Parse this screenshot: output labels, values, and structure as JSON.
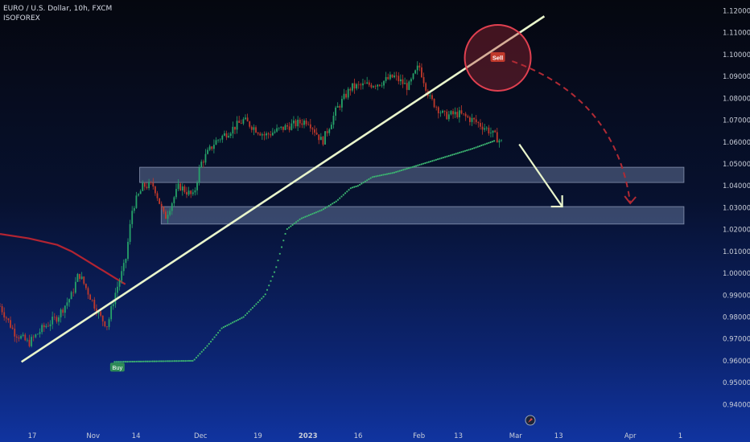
{
  "header": {
    "title": "EURO / U.S. Dollar, 10h, FXCM",
    "subtitle": "ISOFOREX"
  },
  "colors": {
    "up": "#26a269",
    "down": "#c0392b",
    "trend": "#e9f5cc",
    "zone_fill": "#8a9ec6",
    "dots": "#3cb371",
    "ma": "#b22432",
    "sell": "#c0392b",
    "buy": "#2e8b57"
  },
  "chart_data": {
    "type": "candlestick",
    "instrument": "EURO / U.S. Dollar",
    "timeframe": "10h",
    "ylim": [
      0.935,
      1.122
    ],
    "yticks": [
      "1.12000",
      "1.11000",
      "1.10000",
      "1.09000",
      "1.08000",
      "1.07000",
      "1.06000",
      "1.05000",
      "1.04000",
      "1.03000",
      "1.02000",
      "1.01000",
      "1.00000",
      "0.99000",
      "0.98000",
      "0.97000",
      "0.96000",
      "0.95000",
      "0.94000"
    ],
    "xticks": [
      {
        "label": "17",
        "x": 0.045,
        "bold": false
      },
      {
        "label": "Nov",
        "x": 0.13,
        "bold": false
      },
      {
        "label": "14",
        "x": 0.19,
        "bold": false
      },
      {
        "label": "Dec",
        "x": 0.28,
        "bold": false
      },
      {
        "label": "19",
        "x": 0.36,
        "bold": false
      },
      {
        "label": "2023",
        "x": 0.43,
        "bold": true
      },
      {
        "label": "16",
        "x": 0.5,
        "bold": false
      },
      {
        "label": "Feb",
        "x": 0.585,
        "bold": false
      },
      {
        "label": "13",
        "x": 0.64,
        "bold": false
      },
      {
        "label": "Mar",
        "x": 0.72,
        "bold": false
      },
      {
        "label": "13",
        "x": 0.78,
        "bold": false
      },
      {
        "label": "Apr",
        "x": 0.88,
        "bold": false
      },
      {
        "label": "1",
        "x": 0.95,
        "bold": false
      }
    ],
    "price_path": [
      [
        0.0,
        0.985
      ],
      [
        0.02,
        0.973
      ],
      [
        0.04,
        0.968
      ],
      [
        0.06,
        0.975
      ],
      [
        0.08,
        0.98
      ],
      [
        0.1,
        0.99
      ],
      [
        0.11,
        1.0
      ],
      [
        0.125,
        0.99
      ],
      [
        0.14,
        0.98
      ],
      [
        0.15,
        0.976
      ],
      [
        0.16,
        0.99
      ],
      [
        0.175,
        1.005
      ],
      [
        0.185,
        1.03
      ],
      [
        0.2,
        1.04
      ],
      [
        0.215,
        1.04
      ],
      [
        0.23,
        1.025
      ],
      [
        0.25,
        1.04
      ],
      [
        0.27,
        1.035
      ],
      [
        0.28,
        1.05
      ],
      [
        0.3,
        1.06
      ],
      [
        0.32,
        1.065
      ],
      [
        0.34,
        1.07
      ],
      [
        0.37,
        1.063
      ],
      [
        0.4,
        1.067
      ],
      [
        0.43,
        1.07
      ],
      [
        0.45,
        1.06
      ],
      [
        0.47,
        1.075
      ],
      [
        0.49,
        1.085
      ],
      [
        0.51,
        1.086
      ],
      [
        0.53,
        1.087
      ],
      [
        0.55,
        1.09
      ],
      [
        0.57,
        1.085
      ],
      [
        0.585,
        1.095
      ],
      [
        0.6,
        1.08
      ],
      [
        0.62,
        1.072
      ],
      [
        0.64,
        1.073
      ],
      [
        0.66,
        1.07
      ],
      [
        0.68,
        1.066
      ],
      [
        0.7,
        1.06
      ]
    ],
    "ma_path": [
      [
        0.0,
        1.018
      ],
      [
        0.04,
        1.016
      ],
      [
        0.08,
        1.013
      ],
      [
        0.1,
        1.01
      ],
      [
        0.12,
        1.006
      ],
      [
        0.14,
        1.002
      ],
      [
        0.16,
        0.998
      ],
      [
        0.175,
        0.995
      ]
    ],
    "dots_path": [
      [
        0.16,
        0.9595
      ],
      [
        0.27,
        0.96
      ],
      [
        0.29,
        0.967
      ],
      [
        0.31,
        0.975
      ],
      [
        0.34,
        0.98
      ],
      [
        0.37,
        0.99
      ],
      [
        0.385,
        1.002
      ],
      [
        0.4,
        1.02
      ],
      [
        0.42,
        1.025
      ],
      [
        0.45,
        1.029
      ],
      [
        0.47,
        1.033
      ],
      [
        0.49,
        1.039
      ],
      [
        0.5,
        1.04
      ],
      [
        0.52,
        1.044
      ],
      [
        0.55,
        1.046
      ],
      [
        0.58,
        1.049
      ],
      [
        0.61,
        1.052
      ],
      [
        0.64,
        1.055
      ],
      [
        0.66,
        1.057
      ],
      [
        0.69,
        1.0605
      ]
    ],
    "zones": [
      {
        "top": 1.0485,
        "bottom": 1.0415,
        "x_start": 0.195,
        "x_end": 0.955
      },
      {
        "top": 1.0305,
        "bottom": 1.0225,
        "x_start": 0.225,
        "x_end": 0.955
      }
    ],
    "trendline": {
      "x1": 0.03,
      "y1": 0.9595,
      "x2": 0.76,
      "y2": 1.1175
    },
    "sell_circle": {
      "x": 0.695,
      "y": 1.0985,
      "label": "Sell"
    },
    "buy_label": {
      "x": 0.165,
      "y": 0.9595,
      "label": "Buy"
    },
    "projection_arrow": {
      "x1": 0.725,
      "y1": 1.059,
      "x2": 0.785,
      "y2": 1.0305
    },
    "dashed_arrow": {
      "x1": 0.715,
      "y1": 1.097,
      "cx": 0.86,
      "cy": 1.08,
      "x2": 0.88,
      "y2": 1.032
    }
  }
}
